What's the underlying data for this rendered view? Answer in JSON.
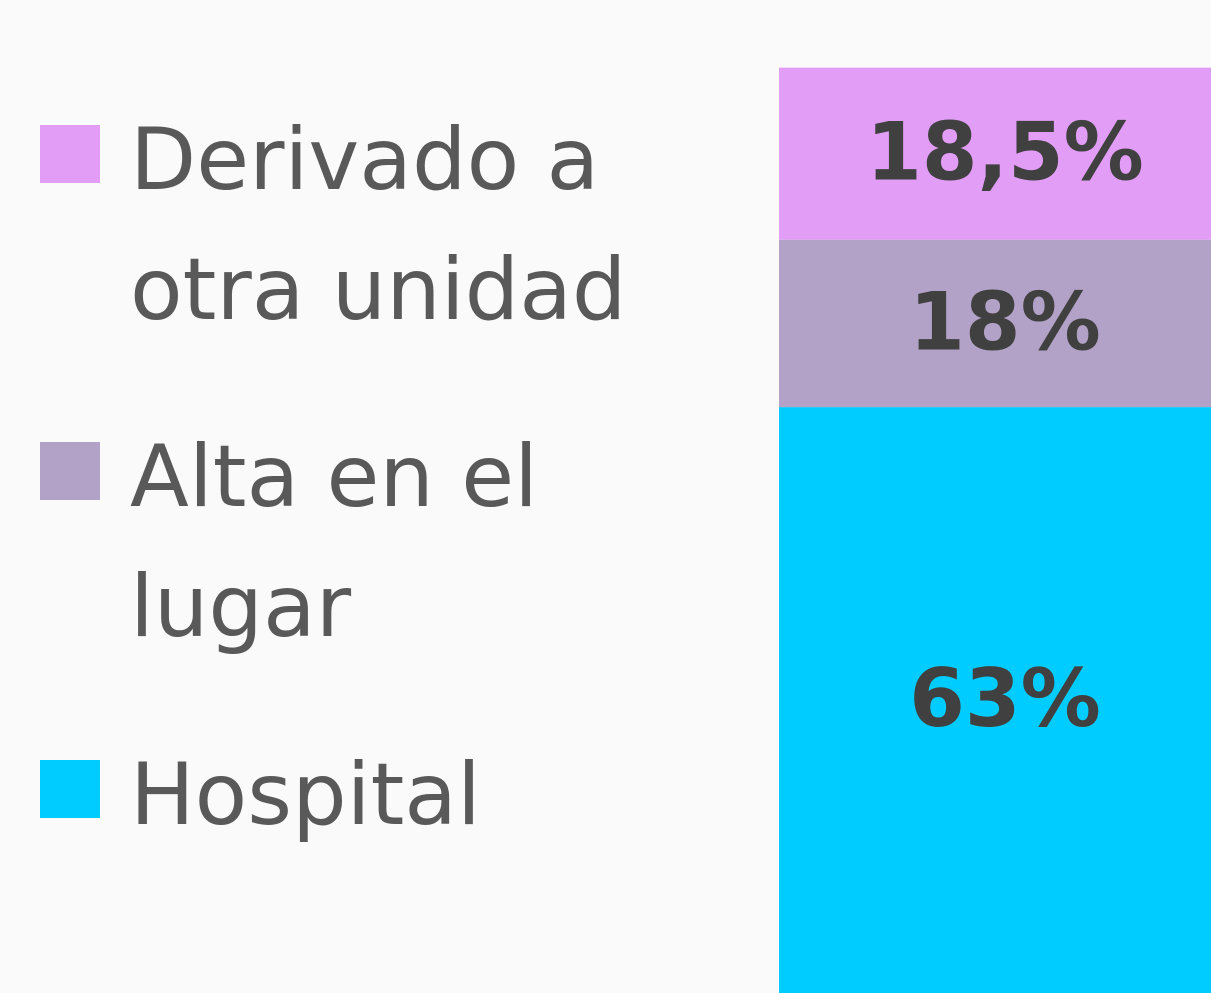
{
  "chart_data": {
    "type": "stacked-bar",
    "series": [
      {
        "name": "Hospital",
        "color": "#00ccff",
        "values": [
          63
        ],
        "value_labels": [
          "63%"
        ]
      },
      {
        "name": "Alta en el lugar",
        "color": "#b3a2c7",
        "values": [
          18
        ],
        "value_labels": [
          "18%"
        ]
      },
      {
        "name": "Derivado a otra unidad",
        "color": "#e29ef7",
        "values": [
          18.5
        ],
        "value_labels": [
          "18,5%"
        ]
      }
    ]
  }
}
